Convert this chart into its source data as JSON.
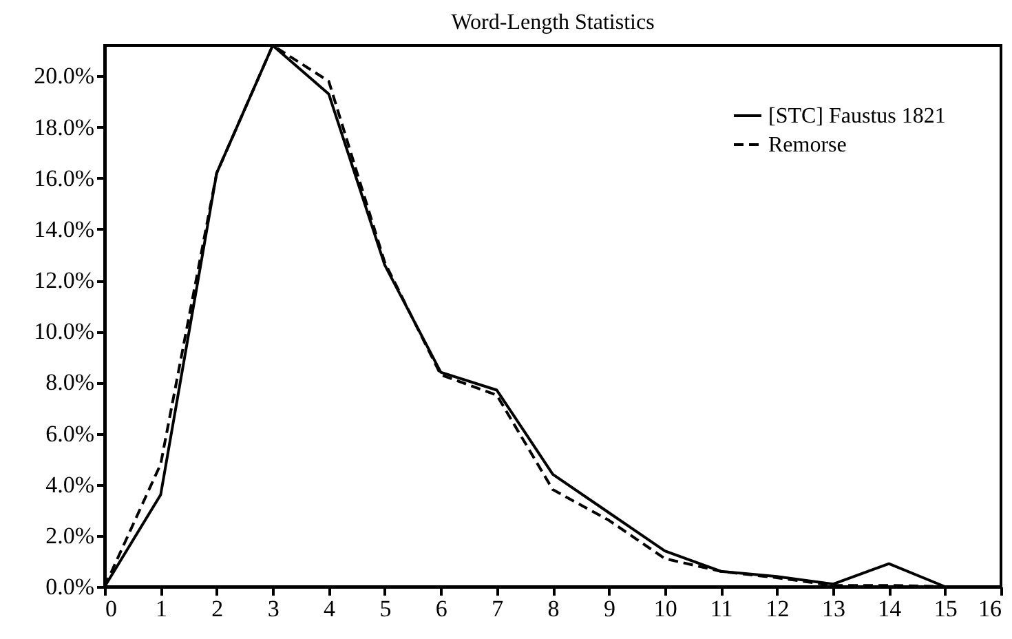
{
  "chart_data": {
    "type": "line",
    "title": "Word-Length Statistics",
    "x": [
      0,
      1,
      2,
      3,
      4,
      5,
      6,
      7,
      8,
      9,
      10,
      11,
      12,
      13,
      14,
      15
    ],
    "series": [
      {
        "name": "[STC] Faustus 1821",
        "color": "#000000",
        "line_style": "solid",
        "values": [
          0,
          3.6,
          16.2,
          21.2,
          19.3,
          12.6,
          8.4,
          7.7,
          4.4,
          2.9,
          1.4,
          0.6,
          0.4,
          0.1,
          0.9,
          0
        ]
      },
      {
        "name": "Remorse",
        "color": "#000000",
        "line_style": "dashed",
        "values": [
          0,
          4.8,
          16.2,
          21.2,
          19.8,
          12.7,
          8.3,
          7.5,
          3.8,
          2.6,
          1.1,
          0.6,
          0.35,
          0.05,
          0.05,
          0
        ]
      }
    ],
    "xlim": [
      0,
      16
    ],
    "xticks": [
      0,
      1,
      2,
      3,
      4,
      5,
      6,
      7,
      8,
      9,
      10,
      11,
      12,
      13,
      14,
      15,
      16
    ],
    "ylim": [
      0,
      21.2
    ],
    "yticks": [
      {
        "value": 0,
        "label": "0.0%"
      },
      {
        "value": 2,
        "label": "2.0%"
      },
      {
        "value": 4,
        "label": "4.0%"
      },
      {
        "value": 6,
        "label": "6.0%"
      },
      {
        "value": 8,
        "label": "8.0%"
      },
      {
        "value": 10,
        "label": "10.0%"
      },
      {
        "value": 12,
        "label": "12.0%"
      },
      {
        "value": 14,
        "label": "14.0%"
      },
      {
        "value": 16,
        "label": "16.0%"
      },
      {
        "value": 18,
        "label": "18.0%"
      },
      {
        "value": 20,
        "label": "20.0%"
      }
    ],
    "grid": false,
    "legend": "top right",
    "marker": "none"
  }
}
